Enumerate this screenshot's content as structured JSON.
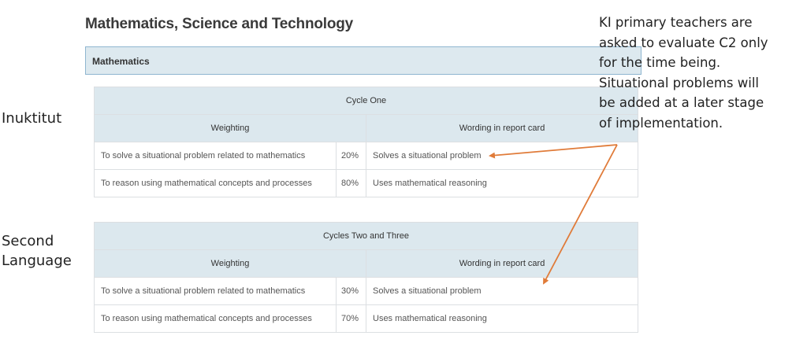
{
  "section_title": "Mathematics, Science and Technology",
  "subject": "Mathematics",
  "side_labels": {
    "first": "Inuktitut",
    "second_line1": "Second",
    "second_line2": "Language"
  },
  "note_lines": [
    "KI primary teachers are",
    "asked to evaluate C2 only",
    "for the time being.",
    "Situational problems will",
    "be added at a later stage",
    "of implementation."
  ],
  "tables": [
    {
      "cycle": "Cycle One",
      "col_weighting": "Weighting",
      "col_wording": "Wording in report card",
      "rows": [
        {
          "competency": "To solve a situational problem related to mathematics",
          "pct": "20%",
          "wording": "Solves a situational problem"
        },
        {
          "competency": "To reason using mathematical concepts and processes",
          "pct": "80%",
          "wording": "Uses mathematical reasoning"
        }
      ]
    },
    {
      "cycle": "Cycles Two and Three",
      "col_weighting": "Weighting",
      "col_wording": "Wording in report card",
      "rows": [
        {
          "competency": "To solve a situational problem related to mathematics",
          "pct": "30%",
          "wording": "Solves a situational problem"
        },
        {
          "competency": "To reason using mathematical concepts and processes",
          "pct": "70%",
          "wording": "Uses mathematical reasoning"
        }
      ]
    }
  ],
  "colors": {
    "arrow": "#e07b39",
    "header_bg": "#dce8ee",
    "subject_border": "#8fb6d0"
  }
}
